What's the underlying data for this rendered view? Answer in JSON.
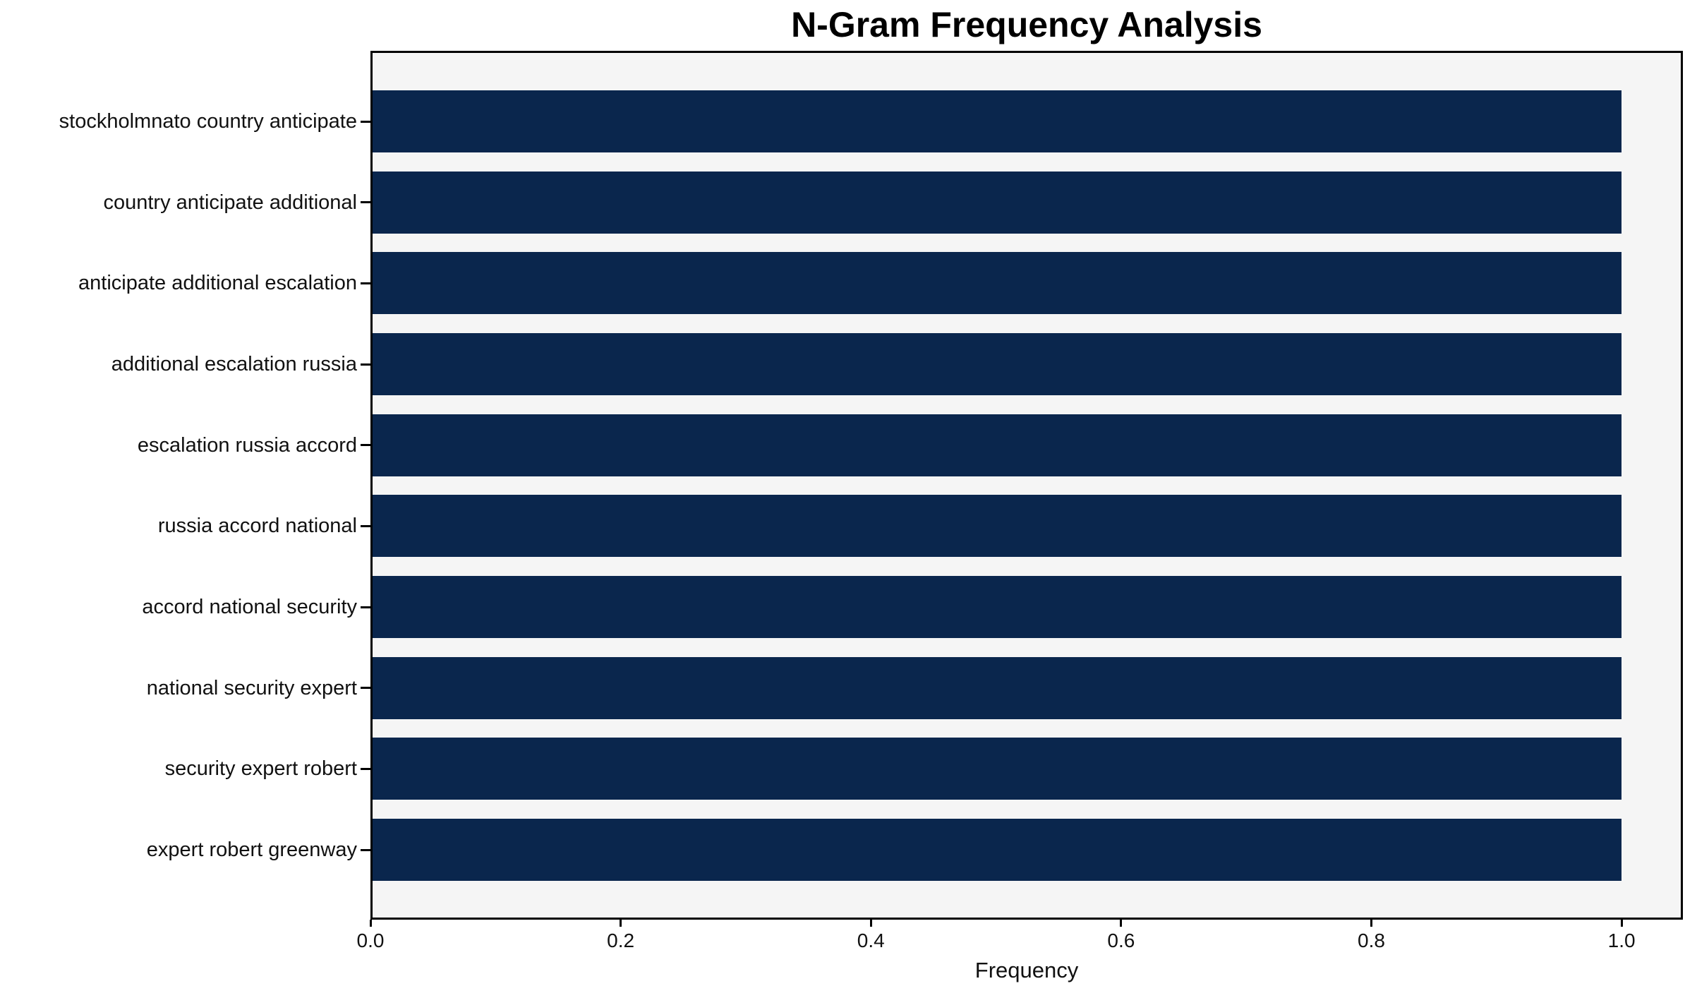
{
  "figure": {
    "background": "#ffffff",
    "plot_background": "#f5f5f5",
    "spine_color": "#000000",
    "text_color": "#111111"
  },
  "chart_data": {
    "type": "bar",
    "orientation": "horizontal",
    "title": "N-Gram Frequency Analysis",
    "xlabel": "Frequency",
    "ylabel": "",
    "categories": [
      "stockholmnato country anticipate",
      "country anticipate additional",
      "anticipate additional escalation",
      "additional escalation russia",
      "escalation russia accord",
      "russia accord national",
      "accord national security",
      "national security expert",
      "security expert robert",
      "expert robert greenway"
    ],
    "values": [
      1.0,
      1.0,
      1.0,
      1.0,
      1.0,
      1.0,
      1.0,
      1.0,
      1.0,
      1.0
    ],
    "bar_color": "#0a264d",
    "xlim": [
      0,
      1.049
    ],
    "xtick_values": [
      0.0,
      0.2,
      0.4,
      0.6,
      0.8,
      1.0
    ],
    "xtick_labels": [
      "0.0",
      "0.2",
      "0.4",
      "0.6",
      "0.8",
      "1.0"
    ],
    "grid": false,
    "legend_position": null
  }
}
